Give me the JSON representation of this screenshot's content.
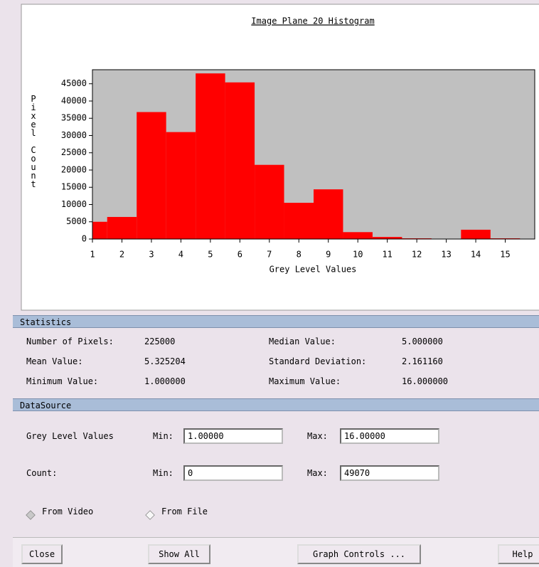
{
  "chart_data": {
    "type": "histogram",
    "title": "Image Plane 20 Histogram",
    "xlabel": "Grey Level Values",
    "ylabel": "Pixel Count",
    "bins": [
      1,
      1.5,
      2.5,
      3.5,
      4.5,
      5.5,
      6.5,
      7.5,
      8.5,
      9.5,
      10.5,
      11.5,
      12.5,
      13.5,
      14.5,
      15.5
    ],
    "values": [
      5000,
      6400,
      36800,
      31000,
      48000,
      45400,
      21500,
      10500,
      14400,
      2000,
      600,
      200,
      0,
      2700,
      200
    ],
    "color": "#ff0000",
    "xlim": [
      1,
      16
    ],
    "xticks": [
      1,
      2,
      3,
      4,
      5,
      6,
      7,
      8,
      9,
      10,
      11,
      12,
      13,
      14,
      15
    ],
    "ylim": [
      0,
      49070
    ],
    "yticks": [
      0,
      5000,
      10000,
      15000,
      20000,
      25000,
      30000,
      35000,
      40000,
      45000
    ]
  },
  "statistics": {
    "title": "Statistics",
    "items": [
      {
        "label": "Number of Pixels:",
        "value": "225000"
      },
      {
        "label": "Median Value:",
        "value": "5.000000"
      },
      {
        "label": "Mean Value:",
        "value": "5.325204"
      },
      {
        "label": "Standard Deviation:",
        "value": "2.161160"
      },
      {
        "label": "Minimum Value:",
        "value": "1.000000"
      },
      {
        "label": "Maximum Value:",
        "value": "16.000000"
      }
    ]
  },
  "datasource": {
    "title": "DataSource",
    "rows": [
      {
        "label": "Grey Level Values",
        "min_label": "Min:",
        "min": "1.00000",
        "max_label": "Max:",
        "max": "16.00000"
      },
      {
        "label": "Count:",
        "min_label": "Min:",
        "min": "0",
        "max_label": "Max:",
        "max": "49070"
      }
    ],
    "radios": [
      "From Video",
      "From File"
    ]
  },
  "buttons": [
    "Close",
    "Show All",
    "Graph Controls ...",
    "Help"
  ]
}
